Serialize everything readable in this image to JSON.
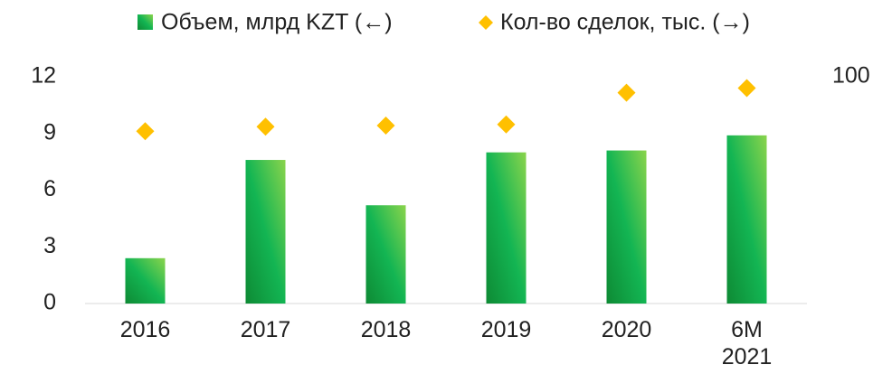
{
  "chart_data": {
    "type": "bar_scatter",
    "categories": [
      "2016",
      "2017",
      "2018",
      "2019",
      "2020",
      "6M 2021"
    ],
    "series": [
      {
        "name": "Объем, млрд KZT (←)",
        "color": "#17a844",
        "values": [
          2.4,
          7.6,
          5.2,
          8.0,
          8.1,
          8.9
        ]
      },
      {
        "name": "Кол-во сделок, тыс. (→)",
        "color": "#ffc000",
        "axis": "y2",
        "values": [
          76,
          78,
          78.5,
          79,
          93,
          95
        ]
      }
    ],
    "ylim": [
      0,
      12
    ],
    "yticks": [
      0,
      3,
      6,
      9,
      12
    ],
    "y2lim": [
      0,
      100
    ],
    "y2ticks": [
      100
    ],
    "legend": "top"
  }
}
